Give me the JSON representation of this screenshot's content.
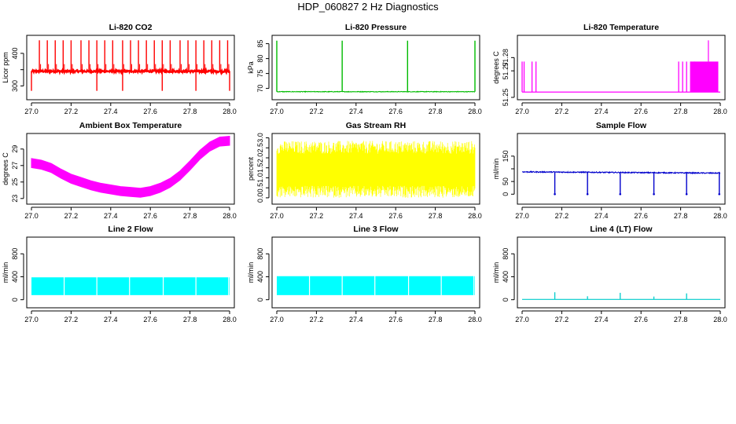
{
  "figure_title": "HDP_060827 2 Hz Diagnostics",
  "chart_data": [
    {
      "type": "line",
      "title": "Li-820 CO2",
      "xlabel": "",
      "ylabel": "Licor ppm",
      "color": "#ff0000",
      "xlim": [
        27.0,
        28.0
      ],
      "ylim": [
        265,
        448
      ],
      "xticks": [
        27.0,
        27.2,
        27.4,
        27.6,
        27.8,
        28.0
      ],
      "xtick_labels": [
        "27.0",
        "27.2",
        "27.4",
        "27.6",
        "27.8",
        "28.0"
      ],
      "yticks": [
        300,
        350,
        400
      ],
      "ytick_labels": [
        "300",
        "",
        "400"
      ],
      "series": [
        {
          "baseline": 345,
          "noise": 3,
          "spikes_up": [
            27.04,
            27.08,
            27.12,
            27.16,
            27.2,
            27.25,
            27.29,
            27.33,
            27.37,
            27.41,
            27.46,
            27.5,
            27.54,
            27.58,
            27.62,
            27.66,
            27.7,
            27.75,
            27.79,
            27.83,
            27.87,
            27.91,
            27.95,
            27.99
          ],
          "spike_up_to": 440,
          "spikes_down": [
            27.0,
            27.33,
            27.46,
            27.66,
            27.83,
            28.0
          ],
          "spike_down_to": 285
        }
      ]
    },
    {
      "type": "line",
      "title": "Li-820 Pressure",
      "xlabel": "",
      "ylabel": "kPa",
      "color": "#00bb00",
      "xlim": [
        27.0,
        28.0
      ],
      "ylim": [
        67,
        87
      ],
      "xticks": [
        27.0,
        27.2,
        27.4,
        27.6,
        27.8,
        28.0
      ],
      "xtick_labels": [
        "27.0",
        "27.2",
        "27.4",
        "27.6",
        "27.8",
        "28.0"
      ],
      "yticks": [
        70,
        75,
        80,
        85
      ],
      "ytick_labels": [
        "70",
        "75",
        "80",
        "85"
      ],
      "series": [
        {
          "baseline": 68.9,
          "noise": 0.1,
          "spikes_up": [
            27.0,
            27.33,
            27.66,
            28.0
          ],
          "spike_up_to": 86,
          "spikes_down": [],
          "spike_down_to": 68
        }
      ]
    },
    {
      "type": "line",
      "title": "Li-820 Temperature",
      "xlabel": "",
      "ylabel": "degrees C",
      "color": "#ff00ff",
      "xlim": [
        27.0,
        28.0
      ],
      "ylim": [
        51.25,
        51.295
      ],
      "xticks": [
        27.0,
        27.2,
        27.4,
        27.6,
        27.8,
        28.0
      ],
      "xtick_labels": [
        "27.0",
        "27.2",
        "27.4",
        "27.6",
        "27.8",
        "28.0"
      ],
      "yticks": [
        51.25,
        51.27,
        51.28
      ],
      "ytick_labels": [
        "51.25",
        "51.27",
        "51.28"
      ],
      "series": [
        {
          "baseline": 51.254,
          "upper": 51.277,
          "top": 51.293,
          "spikes_up": [
            27.0,
            27.01,
            27.05,
            27.07,
            27.79,
            27.81,
            27.83,
            27.85,
            27.87
          ],
          "dense_from": 27.85,
          "dense_to": 27.99,
          "peak_at": 27.94
        }
      ]
    },
    {
      "type": "line",
      "title": "Ambient Box Temperature",
      "xlabel": "",
      "ylabel": "degrees C",
      "color": "#ff00ff",
      "xlim": [
        27.0,
        28.0
      ],
      "ylim": [
        22.6,
        30.6
      ],
      "xticks": [
        27.0,
        27.2,
        27.4,
        27.6,
        27.8,
        28.0
      ],
      "xtick_labels": [
        "27.0",
        "27.2",
        "27.4",
        "27.6",
        "27.8",
        "28.0"
      ],
      "yticks": [
        23,
        25,
        27,
        29
      ],
      "ytick_labels": [
        "23",
        "25",
        "27",
        "29"
      ],
      "series": [
        {
          "points": [
            [
              27.0,
              27.3
            ],
            [
              27.05,
              27.1
            ],
            [
              27.1,
              26.7
            ],
            [
              27.15,
              26.0
            ],
            [
              27.2,
              25.4
            ],
            [
              27.25,
              25.0
            ],
            [
              27.3,
              24.6
            ],
            [
              27.35,
              24.3
            ],
            [
              27.4,
              24.1
            ],
            [
              27.45,
              23.9
            ],
            [
              27.5,
              23.8
            ],
            [
              27.55,
              23.7
            ],
            [
              27.6,
              23.9
            ],
            [
              27.65,
              24.3
            ],
            [
              27.7,
              24.9
            ],
            [
              27.75,
              25.8
            ],
            [
              27.8,
              27.0
            ],
            [
              27.85,
              28.3
            ],
            [
              27.9,
              29.3
            ],
            [
              27.95,
              29.9
            ],
            [
              28.0,
              30.0
            ]
          ],
          "band": 0.55
        }
      ]
    },
    {
      "type": "line",
      "title": "Gas Stream RH",
      "xlabel": "",
      "ylabel": "percent",
      "color": "#ffff00",
      "xlim": [
        27.0,
        28.0
      ],
      "ylim": [
        -0.2,
        3.1
      ],
      "xticks": [
        27.0,
        27.2,
        27.4,
        27.6,
        27.8,
        28.0
      ],
      "xtick_labels": [
        "27.0",
        "27.2",
        "27.4",
        "27.6",
        "27.8",
        "28.0"
      ],
      "yticks": [
        0.0,
        0.5,
        1.0,
        1.5,
        2.0,
        2.5,
        3.0
      ],
      "ytick_labels": [
        "0.0",
        "0.5",
        "1.0",
        "1.5",
        "2.0",
        "2.5",
        "3.0"
      ],
      "series": [
        {
          "low": 0.6,
          "high": 2.2,
          "min": 0.0,
          "max": 2.85
        }
      ]
    },
    {
      "type": "line",
      "title": "Sample Flow",
      "xlabel": "",
      "ylabel": "ml/min",
      "color": "#0000cc",
      "xlim": [
        27.0,
        28.0
      ],
      "ylim": [
        -30,
        230
      ],
      "xticks": [
        27.0,
        27.2,
        27.4,
        27.6,
        27.8,
        28.0
      ],
      "xtick_labels": [
        "27.0",
        "27.2",
        "27.4",
        "27.6",
        "27.8",
        "28.0"
      ],
      "yticks": [
        0,
        50,
        100,
        150
      ],
      "ytick_labels": [
        "0",
        "50",
        "",
        "150"
      ],
      "series": [
        {
          "baseline": 88,
          "drift_end": 83,
          "noise": 2,
          "spikes_down": [
            27.165,
            27.33,
            27.495,
            27.665,
            27.83,
            27.995
          ],
          "spike_down_to": 0
        }
      ]
    },
    {
      "type": "area",
      "title": "Line 2 Flow",
      "xlabel": "",
      "ylabel": "ml/min",
      "color": "#00ffff",
      "xlim": [
        27.0,
        28.0
      ],
      "ylim": [
        -100,
        1050
      ],
      "xticks": [
        27.0,
        27.2,
        27.4,
        27.6,
        27.8,
        28.0
      ],
      "xtick_labels": [
        "27.0",
        "27.2",
        "27.4",
        "27.6",
        "27.8",
        "28.0"
      ],
      "yticks": [
        0,
        400,
        800
      ],
      "ytick_labels": [
        "0",
        "400",
        "800"
      ],
      "series": [
        {
          "low": 80,
          "high": 390,
          "gaps": [
            27.165,
            27.33,
            27.495,
            27.665,
            27.83,
            27.995
          ]
        }
      ]
    },
    {
      "type": "area",
      "title": "Line 3 Flow",
      "xlabel": "",
      "ylabel": "ml/min",
      "color": "#00ffff",
      "xlim": [
        27.0,
        28.0
      ],
      "ylim": [
        -100,
        1050
      ],
      "xticks": [
        27.0,
        27.2,
        27.4,
        27.6,
        27.8,
        28.0
      ],
      "xtick_labels": [
        "27.0",
        "27.2",
        "27.4",
        "27.6",
        "27.8",
        "28.0"
      ],
      "yticks": [
        0,
        400,
        800
      ],
      "ytick_labels": [
        "0",
        "400",
        "800"
      ],
      "series": [
        {
          "low": 80,
          "high": 410,
          "gaps": [
            27.165,
            27.33,
            27.495,
            27.665,
            27.83,
            27.995
          ]
        }
      ]
    },
    {
      "type": "line",
      "title": "Line 4 (LT) Flow",
      "xlabel": "",
      "ylabel": "ml/min",
      "color": "#00cccc",
      "xlim": [
        27.0,
        28.0
      ],
      "ylim": [
        -100,
        1050
      ],
      "xticks": [
        27.0,
        27.2,
        27.4,
        27.6,
        27.8,
        28.0
      ],
      "xtick_labels": [
        "27.0",
        "27.2",
        "27.4",
        "27.6",
        "27.8",
        "28.0"
      ],
      "yticks": [
        0,
        400,
        800
      ],
      "ytick_labels": [
        "0",
        "400",
        "800"
      ],
      "series": [
        {
          "baseline": 5,
          "spikes_up": [
            27.165,
            27.33,
            27.495,
            27.665,
            27.83
          ],
          "spike_heights": [
            130,
            60,
            120,
            55,
            110
          ]
        }
      ]
    }
  ]
}
